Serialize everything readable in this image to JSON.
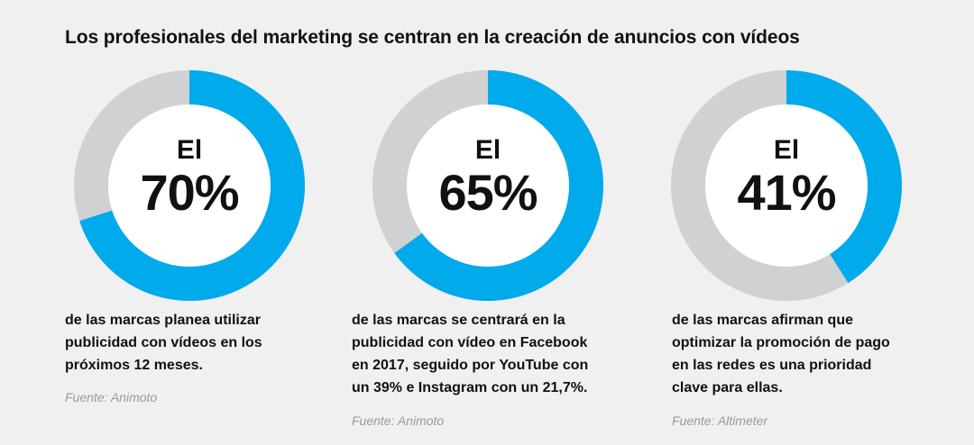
{
  "title": "Los profesionales del marketing se centran en la creación de anuncios con vídeos",
  "colors": {
    "accent": "#00aaeb",
    "remainder": "#d0d1d2",
    "background": "#eff0ef"
  },
  "chart_data": [
    {
      "type": "pie",
      "style": "donut",
      "prefix": "El",
      "value": 70,
      "value_label": "70%",
      "description_lines": [
        "de las marcas planea utilizar",
        "publicidad con vídeos en los",
        "próximos 12 meses."
      ],
      "source": "Fuente: Animoto"
    },
    {
      "type": "pie",
      "style": "donut",
      "prefix": "El",
      "value": 65,
      "value_label": "65%",
      "description_lines": [
        "de las marcas se centrará en la",
        "publicidad con vídeo en Facebook",
        "en 2017, seguido por YouTube con",
        "un 39% e Instagram con un 21,7%."
      ],
      "source": "Fuente: Animoto"
    },
    {
      "type": "pie",
      "style": "donut",
      "prefix": "El",
      "value": 41,
      "value_label": "41%",
      "description_lines": [
        "de las marcas afirman que",
        "optimizar la promoción de pago",
        "en las redes es una prioridad",
        "clave para ellas."
      ],
      "source": "Fuente: Altimeter"
    }
  ]
}
